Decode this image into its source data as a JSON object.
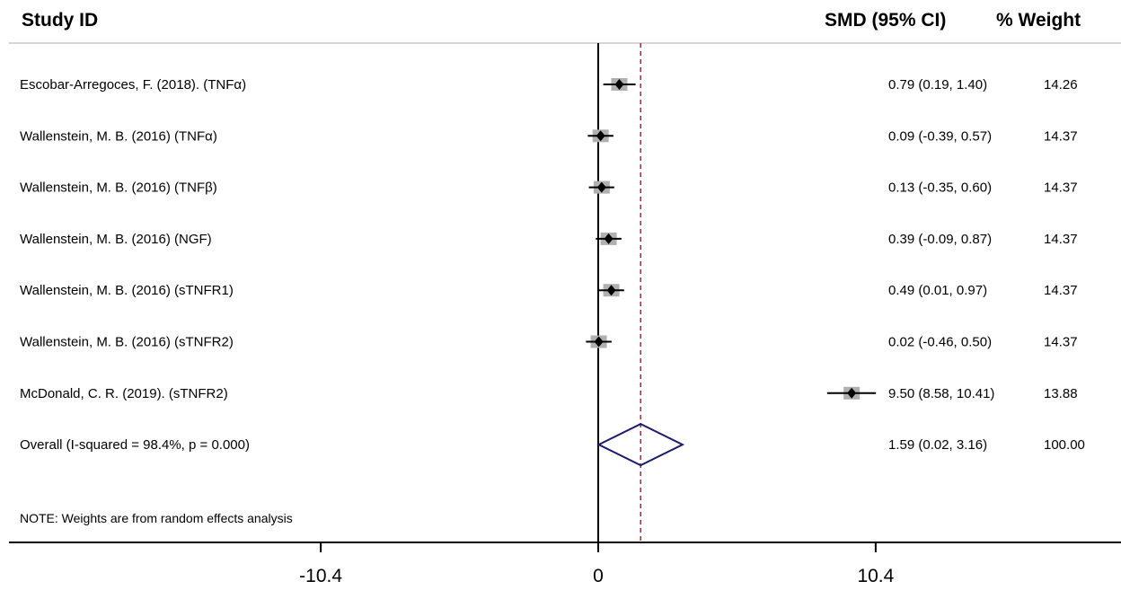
{
  "header": {
    "study_label": "Study ID",
    "effect_label": "SMD (95% CI)",
    "weight_label": "% Weight"
  },
  "colors": {
    "null_line": "#000000",
    "overall_line": "#a52a2a",
    "diamond": "#1a1a6e",
    "ci": "#000000",
    "weight_box": "#b0b0b0"
  },
  "chart_data": {
    "type": "forest",
    "xlabel": "",
    "ylabel": "",
    "xticks": [
      -10.4,
      0,
      10.4
    ],
    "xtick_labels": [
      "-10.4",
      "0",
      "10.4"
    ],
    "studies": [
      {
        "study": "Escobar-Arregoces, F. (2018). (TNFα)",
        "smd": 0.79,
        "lo": 0.19,
        "hi": 1.4,
        "ci_text": "0.79 (0.19, 1.40)",
        "weight": "14.26"
      },
      {
        "study": "Wallenstein, M. B. (2016) (TNFα)",
        "smd": 0.09,
        "lo": -0.39,
        "hi": 0.57,
        "ci_text": "0.09 (-0.39, 0.57)",
        "weight": "14.37"
      },
      {
        "study": "Wallenstein, M. B. (2016) (TNFβ)",
        "smd": 0.13,
        "lo": -0.35,
        "hi": 0.6,
        "ci_text": "0.13 (-0.35, 0.60)",
        "weight": "14.37"
      },
      {
        "study": "Wallenstein, M. B. (2016) (NGF)",
        "smd": 0.39,
        "lo": -0.09,
        "hi": 0.87,
        "ci_text": "0.39 (-0.09, 0.87)",
        "weight": "14.37"
      },
      {
        "study": "Wallenstein, M. B. (2016) (sTNFR1)",
        "smd": 0.49,
        "lo": 0.01,
        "hi": 0.97,
        "ci_text": "0.49 (0.01, 0.97)",
        "weight": "14.37"
      },
      {
        "study": "Wallenstein, M. B. (2016) (sTNFR2)",
        "smd": 0.02,
        "lo": -0.46,
        "hi": 0.5,
        "ci_text": "0.02 (-0.46, 0.50)",
        "weight": "14.37"
      },
      {
        "study": "McDonald, C. R. (2019). (sTNFR2)",
        "smd": 9.5,
        "lo": 8.58,
        "hi": 10.41,
        "ci_text": "9.50 (8.58, 10.41)",
        "weight": "13.88"
      }
    ],
    "overall": {
      "label": "Overall  (I-squared = 98.4%, p = 0.000)",
      "smd": 1.59,
      "lo": 0.02,
      "hi": 3.16,
      "ci_text": "1.59 (0.02, 3.16)",
      "weight": "100.00"
    },
    "note": "NOTE: Weights are from random effects analysis"
  }
}
